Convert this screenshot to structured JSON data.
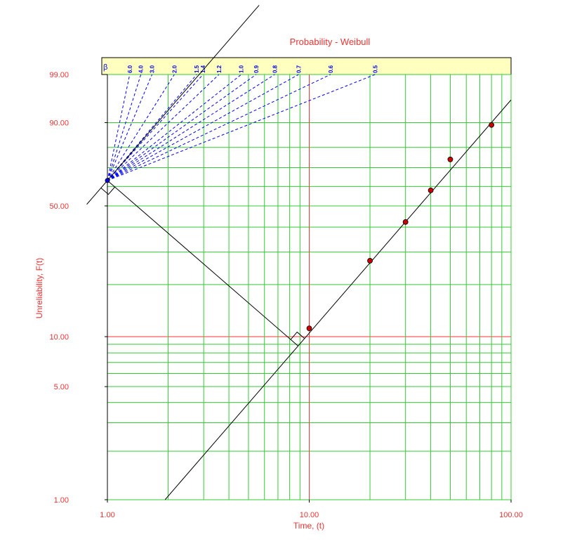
{
  "chart_data": {
    "type": "weibull",
    "title": "Probability - Weibull",
    "x_label": "Time, (t)",
    "y_label": "Unreliability, F(t)",
    "xlim": [
      1,
      100
    ],
    "ylim": [
      1,
      99
    ],
    "xscale": "log",
    "xticks": [
      {
        "value": 1,
        "label": "1.00"
      },
      {
        "value": 10,
        "label": "10.00"
      },
      {
        "value": 100,
        "label": "100.00"
      }
    ],
    "yticks": [
      {
        "value": 1,
        "label": "1.00"
      },
      {
        "value": 5,
        "label": "5.00"
      },
      {
        "value": 10,
        "label": "10.00"
      },
      {
        "value": 50,
        "label": "50.00"
      },
      {
        "value": 90,
        "label": "90.00"
      },
      {
        "value": 99,
        "label": "99.00"
      }
    ],
    "xgrid": [
      1,
      2,
      3,
      4,
      5,
      6,
      7,
      8,
      9,
      10,
      20,
      30,
      40,
      50,
      60,
      70,
      80,
      90,
      100
    ],
    "ygrid": [
      1,
      2,
      3,
      4,
      5,
      6,
      7,
      8,
      9,
      10,
      20,
      30,
      40,
      50,
      60,
      70,
      80,
      90,
      99
    ],
    "grid_color": "#33cc33",
    "highlight": {
      "x": 10,
      "y": 10,
      "color": "#ff3333"
    },
    "points": {
      "x": [
        10,
        20,
        30,
        40,
        50,
        80
      ],
      "values": [
        11.2,
        27.0,
        42.3,
        58.0,
        74.2,
        89.2
      ],
      "color": "#cc0000"
    },
    "fit_line": {
      "x": [
        1.93,
        100
      ],
      "values": [
        1,
        95.9
      ]
    },
    "origin": {
      "x": 1,
      "value": 63.2
    },
    "beta_scale": {
      "label": "β",
      "color": "#0000ff",
      "values": [
        {
          "value": 6,
          "label": "6.0"
        },
        {
          "value": 4,
          "label": "4.0"
        },
        {
          "value": 3,
          "label": "3.0"
        },
        {
          "value": 2,
          "label": "2.0"
        },
        {
          "value": 1.5,
          "label": "1.5"
        },
        {
          "value": 1.4,
          "label": "1.4"
        },
        {
          "value": 1.2,
          "label": "1.2"
        },
        {
          "value": 1,
          "label": "1.0"
        },
        {
          "value": 0.9,
          "label": "0.9"
        },
        {
          "value": 0.8,
          "label": "0.8"
        },
        {
          "value": 0.7,
          "label": "0.7"
        },
        {
          "value": 0.6,
          "label": "0.6"
        },
        {
          "value": 0.5,
          "label": "0.5"
        }
      ]
    }
  }
}
